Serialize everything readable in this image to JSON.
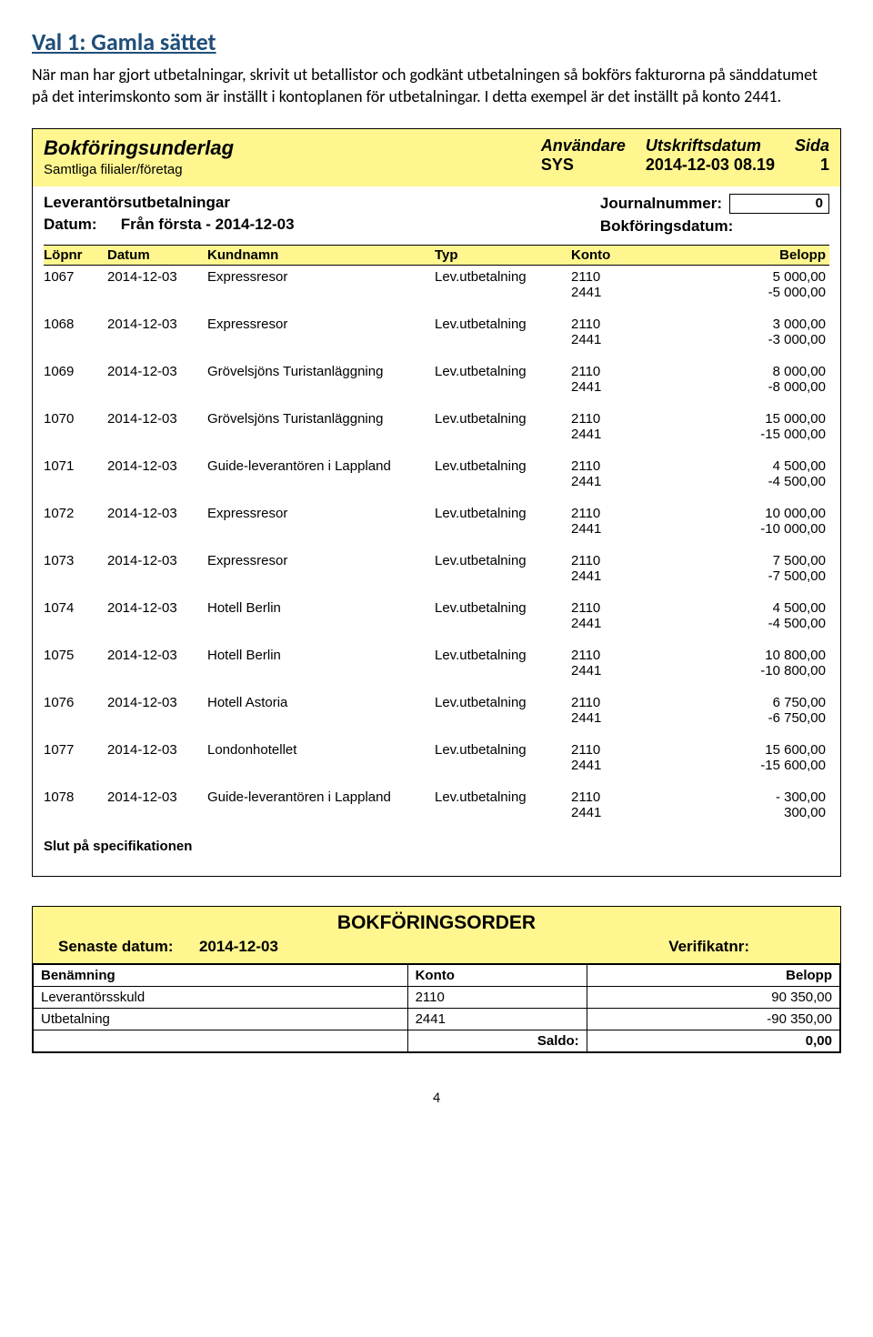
{
  "heading": "Val 1: Gamla sättet",
  "intro": "När man har gjort utbetalningar, skrivit ut betallistor och godkänt utbetalningen så bokförs fakturorna på sänddatumet på det interimskonto som är inställt i kontoplanen för utbetalningar. I detta exempel är det inställt på konto 2441.",
  "banner": {
    "title": "Bokföringsunderlag",
    "subtitle": "Samtliga filialer/företag",
    "user_lbl": "Användare",
    "user_val": "SYS",
    "date_lbl": "Utskriftsdatum",
    "date_val": "2014-12-03 08.19",
    "page_lbl": "Sida",
    "page_val": "1"
  },
  "meta": {
    "left_title": "Leverantörsutbetalningar",
    "datum_label": "Datum:",
    "datum_value": "Från första -  2014-12-03",
    "journal_label": "Journalnummer:",
    "journal_value": "0",
    "bokdat_label": "Bokföringsdatum:"
  },
  "columns": {
    "lopnr": "Löpnr",
    "datum": "Datum",
    "kund": "Kundnamn",
    "typ": "Typ",
    "konto": "Konto",
    "belopp": "Belopp"
  },
  "entries": [
    {
      "lop": "1067",
      "date": "2014-12-03",
      "name": "Expressresor",
      "typ": "Lev.utbetalning",
      "k1": "2110",
      "b1": "5 000,00",
      "k2": "2441",
      "b2": "-5 000,00"
    },
    {
      "lop": "1068",
      "date": "2014-12-03",
      "name": "Expressresor",
      "typ": "Lev.utbetalning",
      "k1": "2110",
      "b1": "3 000,00",
      "k2": "2441",
      "b2": "-3 000,00"
    },
    {
      "lop": "1069",
      "date": "2014-12-03",
      "name": "Grövelsjöns Turistanläggning",
      "typ": "Lev.utbetalning",
      "k1": "2110",
      "b1": "8 000,00",
      "k2": "2441",
      "b2": "-8 000,00"
    },
    {
      "lop": "1070",
      "date": "2014-12-03",
      "name": "Grövelsjöns Turistanläggning",
      "typ": "Lev.utbetalning",
      "k1": "2110",
      "b1": "15 000,00",
      "k2": "2441",
      "b2": "-15 000,00"
    },
    {
      "lop": "1071",
      "date": "2014-12-03",
      "name": "Guide-leverantören i Lappland",
      "typ": "Lev.utbetalning",
      "k1": "2110",
      "b1": "4 500,00",
      "k2": "2441",
      "b2": "-4 500,00"
    },
    {
      "lop": "1072",
      "date": "2014-12-03",
      "name": "Expressresor",
      "typ": "Lev.utbetalning",
      "k1": "2110",
      "b1": "10 000,00",
      "k2": "2441",
      "b2": "-10 000,00"
    },
    {
      "lop": "1073",
      "date": "2014-12-03",
      "name": "Expressresor",
      "typ": "Lev.utbetalning",
      "k1": "2110",
      "b1": "7 500,00",
      "k2": "2441",
      "b2": "-7 500,00"
    },
    {
      "lop": "1074",
      "date": "2014-12-03",
      "name": "Hotell Berlin",
      "typ": "Lev.utbetalning",
      "k1": "2110",
      "b1": "4 500,00",
      "k2": "2441",
      "b2": "-4 500,00"
    },
    {
      "lop": "1075",
      "date": "2014-12-03",
      "name": "Hotell Berlin",
      "typ": "Lev.utbetalning",
      "k1": "2110",
      "b1": "10 800,00",
      "k2": "2441",
      "b2": "-10 800,00"
    },
    {
      "lop": "1076",
      "date": "2014-12-03",
      "name": "Hotell Astoria",
      "typ": "Lev.utbetalning",
      "k1": "2110",
      "b1": "6 750,00",
      "k2": "2441",
      "b2": "-6 750,00"
    },
    {
      "lop": "1077",
      "date": "2014-12-03",
      "name": "Londonhotellet",
      "typ": "Lev.utbetalning",
      "k1": "2110",
      "b1": "15 600,00",
      "k2": "2441",
      "b2": "-15 600,00"
    },
    {
      "lop": "1078",
      "date": "2014-12-03",
      "name": "Guide-leverantören i Lappland",
      "typ": "Lev.utbetalning",
      "k1": "2110",
      "b1": "- 300,00",
      "k2": "2441",
      "b2": "300,00"
    }
  ],
  "end_text": "Slut på specifikationen",
  "order": {
    "title": "BOKFÖRINGSORDER",
    "senaste_label": "Senaste datum:",
    "senaste_value": "2014-12-03",
    "verif_label": "Verifikatnr:",
    "cols": {
      "ben": "Benämning",
      "konto": "Konto",
      "bel": "Belopp"
    },
    "rows": [
      {
        "ben": "Leverantörsskuld",
        "konto": "2110",
        "bel": "90 350,00"
      },
      {
        "ben": "Utbetalning",
        "konto": "2441",
        "bel": "-90 350,00"
      }
    ],
    "saldo_label": "Saldo:",
    "saldo_value": "0,00"
  },
  "page_number": "4"
}
